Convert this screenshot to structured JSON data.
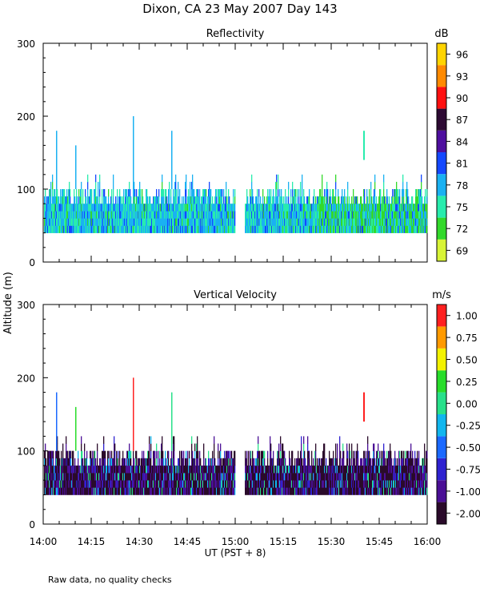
{
  "title": "Dixon, CA 23 May 2007  Day 143",
  "shared_ylabel": "Altitude (m)",
  "footnote": "Raw data, no quality checks",
  "chart_data": [
    {
      "type": "heatmap",
      "title": "Reflectivity",
      "ylabel": "Altitude (m)",
      "ylim": [
        0,
        300
      ],
      "yticks": [
        "0",
        "100",
        "200",
        "300"
      ],
      "colorbar": {
        "unit": "dB",
        "labels": [
          "69",
          "72",
          "75",
          "78",
          "81",
          "84",
          "87",
          "90",
          "93",
          "96"
        ],
        "colors": [
          "#d8f436",
          "#33d92b",
          "#28ecad",
          "#1ab1f2",
          "#1448ff",
          "#4e0f9e",
          "#2d0a33",
          "#ff1010",
          "#ff8a00",
          "#ffd400"
        ]
      },
      "gap_minutes": [
        60,
        63
      ]
    },
    {
      "type": "heatmap",
      "title": "Vertical Velocity",
      "ylabel": "Altitude (m)",
      "ylim": [
        0,
        300
      ],
      "yticks": [
        "0",
        "100",
        "200",
        "300"
      ],
      "colorbar": {
        "unit": "m/s",
        "labels": [
          "-2.00",
          "-1.00",
          "-0.75",
          "-0.50",
          "-0.25",
          "0.00",
          "0.25",
          "0.50",
          "0.75",
          "1.00"
        ],
        "colors": [
          "#2a0a2a",
          "#4a0f95",
          "#2f22d0",
          "#1a69ff",
          "#11b6ee",
          "#28e08a",
          "#28dd2a",
          "#f3f200",
          "#ff9a00",
          "#ff2020"
        ]
      },
      "gap_minutes": [
        60,
        63
      ]
    }
  ],
  "xaxis": {
    "label": "UT  (PST + 8)",
    "range_minutes": [
      0,
      120
    ],
    "tick_labels": [
      "14:00",
      "14:15",
      "14:30",
      "14:45",
      "15:00",
      "15:15",
      "15:30",
      "15:45",
      "16:00"
    ]
  }
}
